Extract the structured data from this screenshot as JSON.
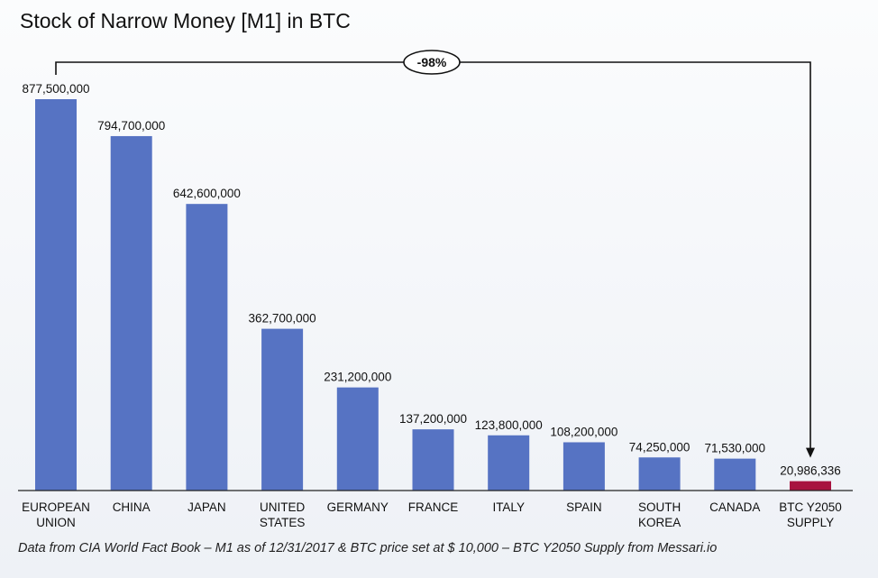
{
  "chart_data": {
    "type": "bar",
    "title": "Stock of Narrow Money [M1] in BTC",
    "categories": [
      [
        "EUROPEAN",
        "UNION"
      ],
      [
        "CHINA"
      ],
      [
        "JAPAN"
      ],
      [
        "UNITED",
        "STATES"
      ],
      [
        "GERMANY"
      ],
      [
        "FRANCE"
      ],
      [
        "ITALY"
      ],
      [
        "SPAIN"
      ],
      [
        "SOUTH",
        "KOREA"
      ],
      [
        "CANADA"
      ],
      [
        "BTC Y2050",
        "SUPPLY"
      ]
    ],
    "values": [
      877500000,
      794700000,
      642600000,
      362700000,
      231200000,
      137200000,
      123800000,
      108200000,
      74250000,
      71530000,
      20986336
    ],
    "value_labels": [
      "877,500,000",
      "794,700,000",
      "642,600,000",
      "362,700,000",
      "231,200,000",
      "137,200,000",
      "123,800,000",
      "108,200,000",
      "74,250,000",
      "71,530,000",
      "20,986,336"
    ],
    "colors": {
      "default": "#5673c3",
      "highlight": "#a8133f",
      "highlight_index": 10
    },
    "ylim": [
      0,
      877500000
    ],
    "grid": false,
    "annotation": {
      "text": "-98%",
      "from_index": 0,
      "to_index": 10
    },
    "source": "Data from CIA World Fact Book – M1 as of 12/31/2017 & BTC price set at $ 10,000 – BTC Y2050 Supply from Messari.io"
  }
}
